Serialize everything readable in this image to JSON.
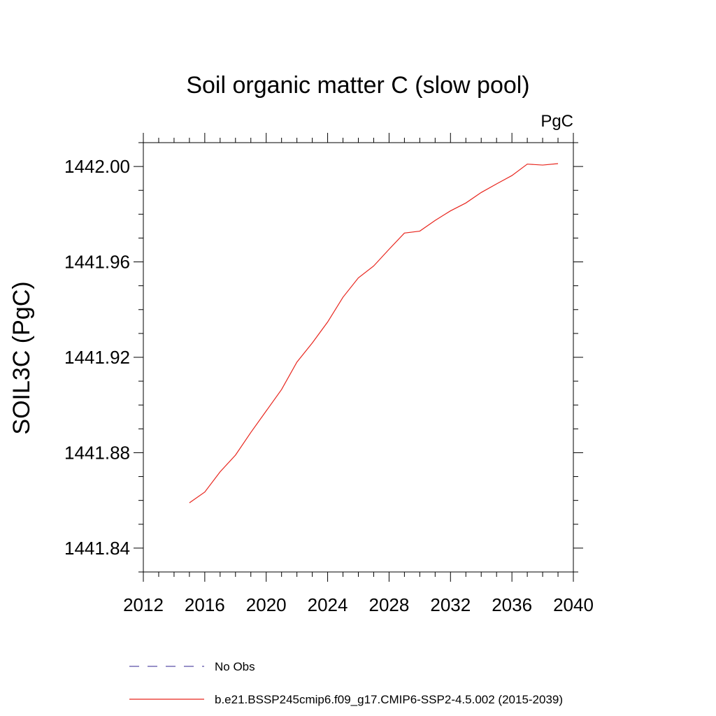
{
  "chart_data": {
    "type": "line",
    "title": "Soil organic matter C (slow pool)",
    "units_label": "PgC",
    "ylabel": "SOIL3C  (PgC)",
    "xlabel": "",
    "xlim": [
      2012,
      2040
    ],
    "ylim": [
      1441.83,
      1442.01
    ],
    "x_ticks": [
      "2012",
      "2016",
      "2020",
      "2024",
      "2028",
      "2032",
      "2036",
      "2040"
    ],
    "x_tick_values": [
      2012,
      2016,
      2020,
      2024,
      2028,
      2032,
      2036,
      2040
    ],
    "y_ticks": [
      "1441.84",
      "1441.88",
      "1441.92",
      "1441.96",
      "1442.00"
    ],
    "y_tick_values": [
      1441.84,
      1441.88,
      1441.92,
      1441.96,
      1442.0
    ],
    "grid": false,
    "legend_position": "bottom",
    "series": [
      {
        "name": "No Obs",
        "color": "#5a4fa8",
        "style": "dashed",
        "x": [],
        "y": []
      },
      {
        "name": "b.e21.BSSP245cmip6.f09_g17.CMIP6-SSP2-4.5.002 (2015-2039)",
        "color": "#e8261e",
        "style": "solid",
        "x": [
          2015,
          2016,
          2017,
          2018,
          2019,
          2020,
          2021,
          2022,
          2023,
          2024,
          2025,
          2026,
          2027,
          2028,
          2029,
          2030,
          2031,
          2032,
          2033,
          2034,
          2035,
          2036,
          2037,
          2038,
          2039
        ],
        "y": [
          1441.859,
          1441.8635,
          1441.872,
          1441.879,
          1441.8885,
          1441.8975,
          1441.9065,
          1441.918,
          1441.926,
          1441.9348,
          1441.9452,
          1441.9533,
          1441.9583,
          1441.9653,
          1441.9721,
          1441.9729,
          1441.9774,
          1441.9814,
          1441.9847,
          1441.9891,
          1441.9927,
          1441.9962,
          1442.001,
          1442.0006,
          1442.0012
        ]
      }
    ]
  }
}
